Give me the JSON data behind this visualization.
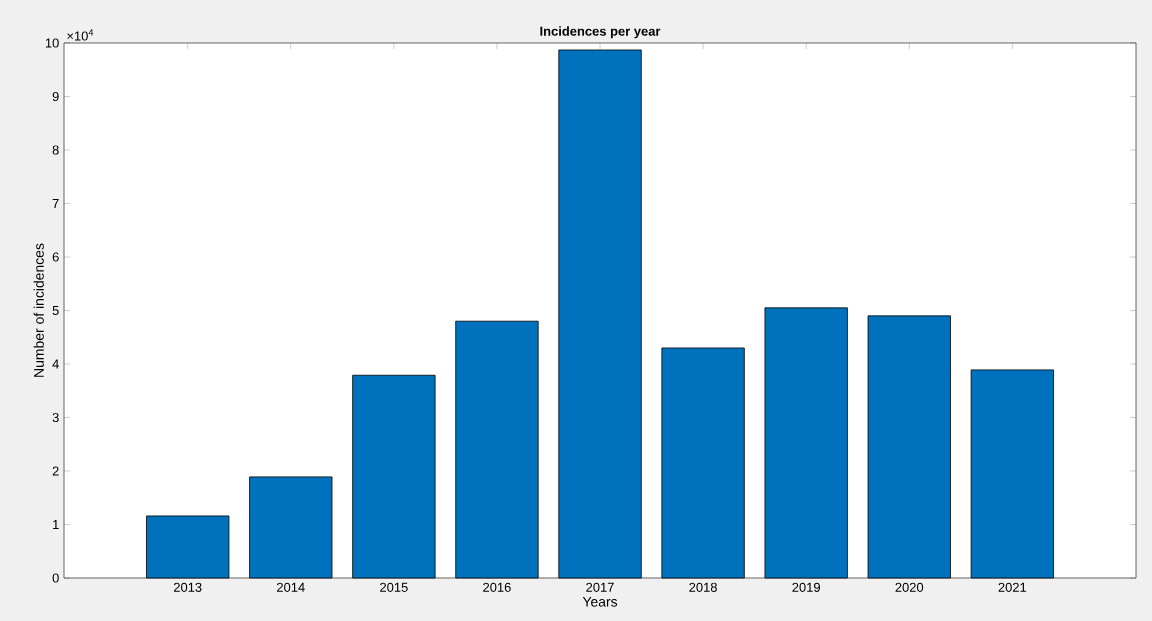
{
  "chart_data": {
    "type": "bar",
    "title": "Incidences per year",
    "xlabel": "Years",
    "ylabel": "Number of incidences",
    "categories": [
      "2013",
      "2014",
      "2015",
      "2016",
      "2017",
      "2018",
      "2019",
      "2020",
      "2021"
    ],
    "values": [
      1.16,
      1.89,
      3.79,
      4.8,
      9.87,
      4.3,
      5.05,
      4.9,
      3.89
    ],
    "color": "#0072bd",
    "ylim": [
      0,
      10
    ],
    "yticks": [
      0,
      1,
      2,
      3,
      4,
      5,
      6,
      7,
      8,
      9,
      10
    ],
    "annotations": [
      "×10$^{4}$"
    ]
  }
}
